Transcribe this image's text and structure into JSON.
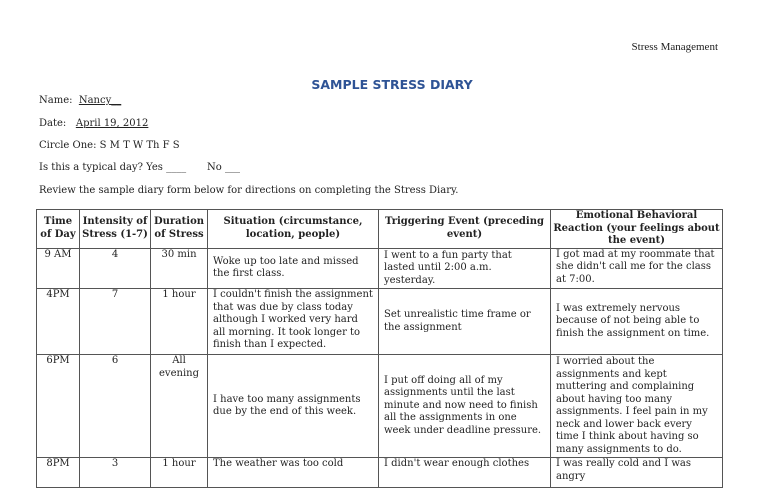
{
  "header_right": "Stress Management",
  "title": "SAMPLE STRESS DIARY",
  "form": {
    "name_label": "Name:",
    "name_value": "Nancy__",
    "date_label": "Date:",
    "date_value": "April 19, 2012",
    "circle_one": "Circle One: S M T W Th F S",
    "typical_question": "Is this a typical day?  Yes ____",
    "typical_no": "No ___",
    "instructions": "Review the sample diary form below for directions on completing the Stress Diary."
  },
  "table": {
    "headers": [
      "Time of Day",
      "Intensity of Stress (1-7)",
      "Duration of Stress",
      "Situation (circumstance, location, people)",
      "Triggering Event (preceding event)",
      "Emotional Behavioral Reaction (your feelings about the event)"
    ],
    "rows": [
      [
        "9 AM",
        "4",
        "30 min",
        "Woke up too late and missed the first class.",
        "I went to a fun party that lasted until 2:00 a.m. yesterday.",
        "I got mad at my roommate that she didn't call me for the class at 7:00."
      ],
      [
        "4PM",
        "7",
        "1 hour",
        "I couldn't finish the assignment that was due by class today although I worked very hard all morning. It took longer to finish than I expected.",
        "Set unrealistic time frame or the assignment",
        "I was extremely nervous because of not being able to finish the assignment on time."
      ],
      [
        "6PM",
        "6",
        "All evening",
        "I have too many assignments due by the end of this week.",
        "I put off doing all of my assignments until the last minute and now need to finish all the assignments in one week under deadline pressure.",
        "I worried about the assignments and kept muttering and complaining about having too many assignments. I feel pain in my neck and lower back every time I think about having so many assignments to do."
      ],
      [
        "8PM",
        "3",
        "1 hour",
        "The weather was too cold",
        "I didn't wear enough clothes",
        "I was really cold and I was angry"
      ]
    ]
  }
}
